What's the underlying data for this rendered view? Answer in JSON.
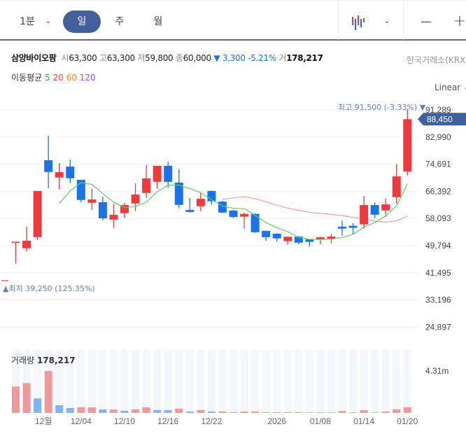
{
  "toolbar": {
    "interval_1m": "1분",
    "day": "일",
    "week": "주",
    "month": "월",
    "chart_type_icon": "candlestick-icon",
    "zoom_out": "—",
    "zoom_in": "+"
  },
  "header": {
    "name": "삼양바이오팜",
    "open_k": "시",
    "open": "63,300",
    "high_k": "고",
    "high": "63,300",
    "low_k": "저",
    "low": "59,800",
    "close_k": "종",
    "close": "60,000",
    "change": "▼ 3,300 -5.21%",
    "vol_k": "거",
    "volume": "178,217",
    "exchange": "한국거래소(KRX)"
  },
  "ma": {
    "label": "이동평균",
    "periods": [
      "5",
      "20",
      "60",
      "120"
    ],
    "colors": [
      "#22bb22",
      "#f0443c",
      "#f08c1c",
      "#9b4dea"
    ]
  },
  "scale": {
    "mode": "Linear"
  },
  "annotations": {
    "high": "최고 91,500 (-3.33%) ▼",
    "low": "▲최저 39,250 (125.35%)",
    "current_price": "88,450"
  },
  "colors": {
    "up": "#ee3a3d",
    "down": "#1a73e8",
    "ma5": "#66cc66",
    "ma20": "#f5a0a0",
    "vol_up": "#f0999b",
    "vol_down": "#7fb6f5",
    "accent": "#42609a"
  },
  "volume": {
    "label": "거래량",
    "value": "178,217",
    "axis_label": "4.31m",
    "axis_value": 4310
  },
  "chart_data": {
    "type": "candlestick",
    "yticks": [
      91289,
      82990,
      74691,
      66392,
      58093,
      49794,
      41495,
      33196,
      24897
    ],
    "ytick_labels": [
      "91,289",
      "82,990",
      "74,691",
      "66,392",
      "58,093",
      "49,794",
      "41,495",
      "33,196",
      "24,897"
    ],
    "xticks": [
      {
        "date": "12/01",
        "label": "12월"
      },
      {
        "date": "12/04",
        "label": "12/04"
      },
      {
        "date": "12/10",
        "label": "12/10"
      },
      {
        "date": "12/16",
        "label": "12/16"
      },
      {
        "date": "12/22",
        "label": "12/22"
      },
      {
        "date": "01/02",
        "label": "2026"
      },
      {
        "date": "01/08",
        "label": "01/08"
      },
      {
        "date": "01/14",
        "label": "01/14"
      },
      {
        "date": "01/20",
        "label": "01/20"
      }
    ],
    "dates": [
      "11/26",
      "11/27",
      "11/28",
      "12/01",
      "12/02",
      "12/03",
      "12/04",
      "12/05",
      "12/08",
      "12/09",
      "12/10",
      "12/11",
      "12/12",
      "12/15",
      "12/16",
      "12/17",
      "12/18",
      "12/19",
      "12/22",
      "12/23",
      "12/24",
      "12/26",
      "12/29",
      "12/30",
      "01/02",
      "01/05",
      "01/06",
      "01/07",
      "01/08",
      "01/09",
      "01/12",
      "01/13",
      "01/14",
      "01/15",
      "01/16",
      "01/19",
      "01/20"
    ],
    "ohlc": [
      [
        50900,
        51000,
        44300,
        51000
      ],
      [
        49000,
        55650,
        48000,
        51300
      ],
      [
        52400,
        66500,
        51550,
        66500
      ],
      [
        75900,
        83400,
        67350,
        72300
      ],
      [
        70600,
        75050,
        66950,
        72250
      ],
      [
        73950,
        76100,
        68900,
        70400
      ],
      [
        69900,
        69900,
        63050,
        63750
      ],
      [
        62900,
        67200,
        60750,
        63900
      ],
      [
        63050,
        64750,
        57550,
        58150
      ],
      [
        57750,
        62550,
        55200,
        59200
      ],
      [
        59700,
        62900,
        58200,
        62200
      ],
      [
        62700,
        68850,
        60350,
        65400
      ],
      [
        65900,
        74400,
        64350,
        70350
      ],
      [
        69300,
        74200,
        67200,
        74200
      ],
      [
        74200,
        75450,
        67500,
        69300
      ],
      [
        69050,
        73150,
        61200,
        62250
      ],
      [
        60700,
        64350,
        59900,
        60100
      ],
      [
        61850,
        66050,
        60350,
        64100
      ],
      [
        66500,
        66700,
        62250,
        63350
      ],
      [
        63250,
        63500,
        59700,
        59900
      ],
      [
        60500,
        60800,
        58300,
        58550
      ],
      [
        58650,
        59850,
        55000,
        59500
      ],
      [
        59500,
        59700,
        53700,
        53900
      ],
      [
        54300,
        54400,
        51300,
        52400
      ],
      [
        53450,
        53600,
        51100,
        52000
      ],
      [
        51150,
        52600,
        50000,
        52500
      ],
      [
        52550,
        52700,
        50300,
        50700
      ],
      [
        51700,
        51800,
        49450,
        50950
      ],
      [
        51800,
        52500,
        50150,
        52350
      ],
      [
        51950,
        53350,
        50500,
        52550
      ],
      [
        55600,
        57450,
        52800,
        55000
      ],
      [
        55850,
        56700,
        53300,
        55250
      ],
      [
        56300,
        65000,
        55000,
        62200
      ],
      [
        62200,
        63100,
        58150,
        59250
      ],
      [
        60550,
        64200,
        58550,
        62400
      ],
      [
        64600,
        74750,
        62650,
        70950
      ],
      [
        72450,
        91500,
        71250,
        88450
      ]
    ],
    "volume_k": [
      2707,
      3066,
      1486,
      4310,
      790,
      503,
      574,
      574,
      359,
      359,
      215,
      359,
      574,
      287,
      287,
      431,
      144,
      287,
      144,
      144,
      72,
      144,
      144,
      72,
      72,
      72,
      72,
      36,
      36,
      36,
      194,
      36,
      287,
      36,
      144,
      359,
      574
    ],
    "volume_dir": "UUDUDDUUDUDUUDDUDUDUDUUDDUUUUUUDUUUUU"
  }
}
